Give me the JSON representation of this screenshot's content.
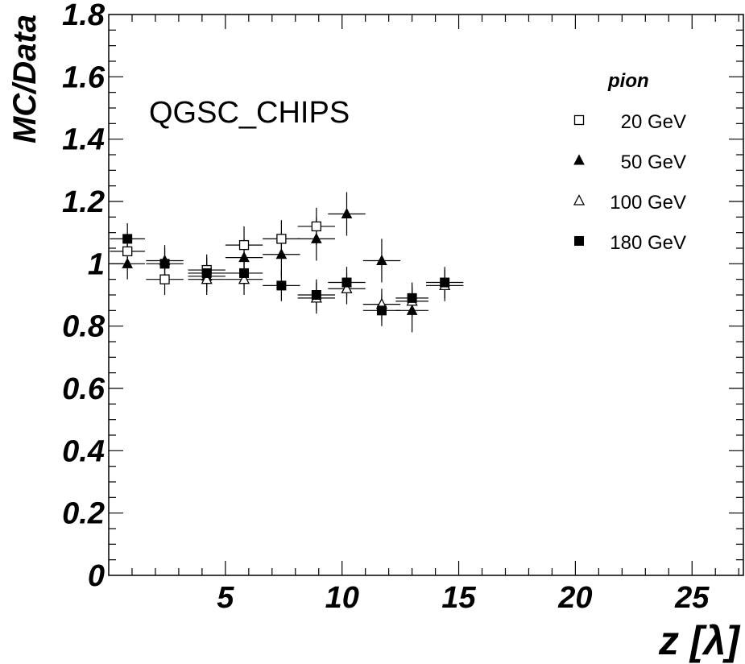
{
  "chart_data": {
    "type": "scatter",
    "title": "",
    "xlabel": "z [λ]",
    "ylabel": "MC/Data",
    "xlim": [
      0,
      27.2
    ],
    "ylim": [
      0,
      1.8
    ],
    "x_ticks": [
      5,
      10,
      15,
      20,
      25
    ],
    "x_tick_labels": [
      "5",
      "10",
      "15",
      "20",
      "25"
    ],
    "y_ticks": [
      0,
      0.2,
      0.4,
      0.6,
      0.8,
      1,
      1.2,
      1.4,
      1.6,
      1.8
    ],
    "y_tick_labels": [
      "0",
      "0.2",
      "0.4",
      "0.6",
      "0.8",
      "1",
      "1.2",
      "1.4",
      "1.6",
      "1.8"
    ],
    "annotation": "QGSC_CHIPS",
    "legend": {
      "title": "pion",
      "placement": "top-right"
    },
    "series": [
      {
        "name": "20 GeV",
        "marker": "open-square",
        "points": [
          {
            "x": 0.8,
            "y": 1.04,
            "xerr": 0.75,
            "yerr": 0.05
          },
          {
            "x": 2.4,
            "y": 0.95,
            "xerr": 0.8,
            "yerr": 0.05
          },
          {
            "x": 4.2,
            "y": 0.98,
            "xerr": 0.8,
            "yerr": 0.05
          },
          {
            "x": 5.8,
            "y": 1.06,
            "xerr": 0.8,
            "yerr": 0.06
          },
          {
            "x": 7.4,
            "y": 1.08,
            "xerr": 0.8,
            "yerr": 0.06
          },
          {
            "x": 8.9,
            "y": 1.12,
            "xerr": 0.8,
            "yerr": 0.06
          }
        ]
      },
      {
        "name": "50 GeV",
        "marker": "filled-triangle",
        "points": [
          {
            "x": 0.8,
            "y": 1.0,
            "xerr": 0.75,
            "yerr": 0.05
          },
          {
            "x": 2.4,
            "y": 1.01,
            "xerr": 0.8,
            "yerr": 0.05
          },
          {
            "x": 4.2,
            "y": 0.96,
            "xerr": 0.8,
            "yerr": 0.05
          },
          {
            "x": 5.8,
            "y": 1.02,
            "xerr": 0.8,
            "yerr": 0.06
          },
          {
            "x": 7.4,
            "y": 1.03,
            "xerr": 0.8,
            "yerr": 0.07
          },
          {
            "x": 8.9,
            "y": 1.08,
            "xerr": 0.8,
            "yerr": 0.07
          },
          {
            "x": 10.2,
            "y": 1.16,
            "xerr": 0.8,
            "yerr": 0.07
          },
          {
            "x": 11.7,
            "y": 1.01,
            "xerr": 0.8,
            "yerr": 0.07
          },
          {
            "x": 13.0,
            "y": 0.85,
            "xerr": 0.7,
            "yerr": 0.07
          }
        ]
      },
      {
        "name": "100 GeV",
        "marker": "open-triangle",
        "points": [
          {
            "x": 4.2,
            "y": 0.95,
            "xerr": 0.8,
            "yerr": 0.05
          },
          {
            "x": 5.8,
            "y": 0.95,
            "xerr": 0.8,
            "yerr": 0.05
          },
          {
            "x": 8.9,
            "y": 0.89,
            "xerr": 0.8,
            "yerr": 0.05
          },
          {
            "x": 10.2,
            "y": 0.92,
            "xerr": 0.8,
            "yerr": 0.05
          },
          {
            "x": 11.7,
            "y": 0.87,
            "xerr": 0.8,
            "yerr": 0.05
          },
          {
            "x": 13.0,
            "y": 0.88,
            "xerr": 0.7,
            "yerr": 0.05
          },
          {
            "x": 14.4,
            "y": 0.93,
            "xerr": 0.8,
            "yerr": 0.05
          }
        ]
      },
      {
        "name": "180 GeV",
        "marker": "filled-square",
        "points": [
          {
            "x": 0.8,
            "y": 1.08,
            "xerr": 0.75,
            "yerr": 0.05
          },
          {
            "x": 2.4,
            "y": 1.0,
            "xerr": 0.8,
            "yerr": 0.05
          },
          {
            "x": 4.2,
            "y": 0.97,
            "xerr": 0.8,
            "yerr": 0.05
          },
          {
            "x": 5.8,
            "y": 0.97,
            "xerr": 0.8,
            "yerr": 0.05
          },
          {
            "x": 7.4,
            "y": 0.93,
            "xerr": 0.8,
            "yerr": 0.05
          },
          {
            "x": 8.9,
            "y": 0.9,
            "xerr": 0.8,
            "yerr": 0.05
          },
          {
            "x": 10.2,
            "y": 0.94,
            "xerr": 0.8,
            "yerr": 0.05
          },
          {
            "x": 11.7,
            "y": 0.85,
            "xerr": 0.8,
            "yerr": 0.05
          },
          {
            "x": 13.0,
            "y": 0.89,
            "xerr": 0.7,
            "yerr": 0.05
          },
          {
            "x": 14.4,
            "y": 0.94,
            "xerr": 0.8,
            "yerr": 0.05
          }
        ]
      }
    ],
    "grid": false,
    "colors": {
      "marker": "#000000",
      "axis": "#000000",
      "background": "#ffffff"
    }
  }
}
